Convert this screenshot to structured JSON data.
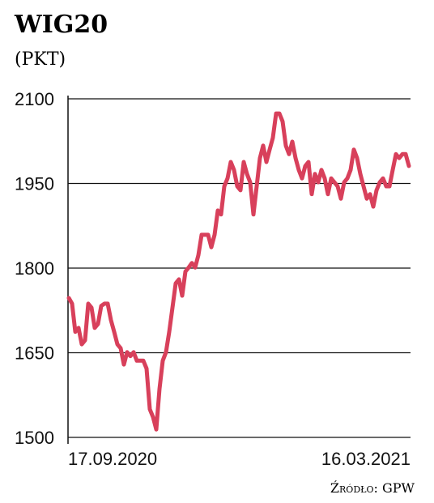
{
  "chart_data": {
    "type": "line",
    "title": "WIG20",
    "subtitle": "(PKT)",
    "source": "Źródło: GPW",
    "categories": [
      "17.09.2020",
      null,
      null,
      null,
      null,
      null,
      null,
      null,
      null,
      null,
      null,
      null,
      null,
      null,
      null,
      null,
      null,
      null,
      null,
      null,
      null,
      null,
      null,
      null,
      null,
      null,
      null,
      null,
      null,
      null,
      null,
      null,
      null,
      null,
      null,
      null,
      null,
      null,
      null,
      null,
      null,
      null,
      null,
      null,
      null,
      null,
      null,
      null,
      null,
      null,
      null,
      null,
      null,
      null,
      null,
      null,
      null,
      null,
      null,
      null,
      null,
      null,
      null,
      null,
      null,
      null,
      null,
      null,
      null,
      null,
      null,
      null,
      null,
      null,
      null,
      null,
      null,
      null,
      null,
      null,
      null,
      null,
      null,
      null,
      null,
      null,
      null,
      null,
      null,
      null,
      null,
      null,
      null,
      null,
      null,
      null,
      null,
      null,
      null,
      null,
      null,
      null,
      null,
      null,
      null,
      "16.03.2021"
    ],
    "series": [
      {
        "name": "WIG20",
        "color": "#d8405b",
        "values": [
          1747,
          1737,
          1687,
          1694,
          1665,
          1672,
          1737,
          1730,
          1694,
          1701,
          1733,
          1737,
          1737,
          1708,
          1687,
          1665,
          1658,
          1629,
          1651,
          1644,
          1651,
          1636,
          1636,
          1636,
          1622,
          1550,
          1536,
          1514,
          1586,
          1636,
          1651,
          1687,
          1730,
          1773,
          1780,
          1751,
          1794,
          1801,
          1809,
          1801,
          1823,
          1859,
          1859,
          1859,
          1837,
          1859,
          1902,
          1895,
          1945,
          1959,
          1988,
          1974,
          1945,
          1938,
          1988,
          1967,
          1952,
          1895,
          1945,
          1995,
          2017,
          1988,
          2010,
          2031,
          2074,
          2074,
          2060,
          2017,
          2002,
          2024,
          1995,
          1974,
          1959,
          1981,
          1988,
          1931,
          1967,
          1952,
          1974,
          1959,
          1931,
          1959,
          1952,
          1945,
          1923,
          1952,
          1959,
          1974,
          2010,
          1995,
          1967,
          1945,
          1923,
          1931,
          1909,
          1938,
          1952,
          1959,
          1945,
          1945,
          1974,
          2002,
          1995,
          2002,
          2002,
          1981
        ]
      }
    ],
    "ylim": [
      1500,
      2100
    ],
    "yticks": [
      1500,
      1650,
      1800,
      1950,
      2100
    ],
    "grid": true
  }
}
